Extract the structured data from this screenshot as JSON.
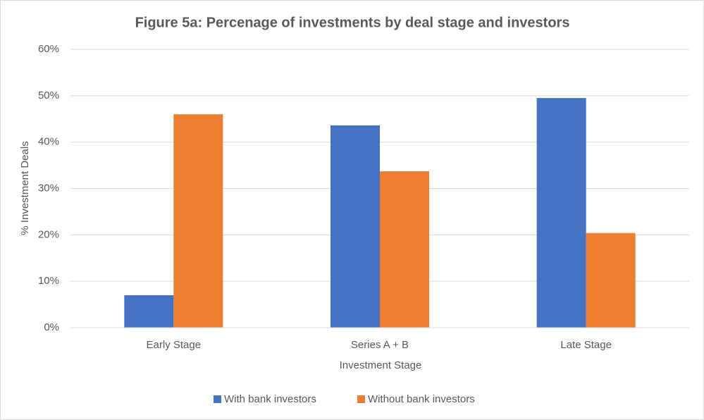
{
  "chart_data": {
    "type": "bar",
    "title": "Figure 5a: Percenage of investments by deal stage and investors",
    "x_label": "Investment Stage",
    "y_label": "% Investment Deals",
    "categories": [
      "Early Stage",
      "Series A + B",
      "Late Stage"
    ],
    "series": [
      {
        "name": "With bank investors",
        "color": "#4472c4",
        "values": [
          7,
          43.6,
          49.5
        ]
      },
      {
        "name": "Without bank investors",
        "color": "#ed7d31",
        "values": [
          46,
          33.7,
          20.4
        ]
      }
    ],
    "ylim": [
      0,
      60
    ],
    "yticks": [
      {
        "value": 0,
        "label": "0%"
      },
      {
        "value": 10,
        "label": "10%"
      },
      {
        "value": 20,
        "label": "20%"
      },
      {
        "value": 30,
        "label": "30%"
      },
      {
        "value": 40,
        "label": "40%"
      },
      {
        "value": 50,
        "label": "50%"
      },
      {
        "value": 60,
        "label": "60%"
      }
    ],
    "grid": true,
    "legend": "bottom"
  }
}
